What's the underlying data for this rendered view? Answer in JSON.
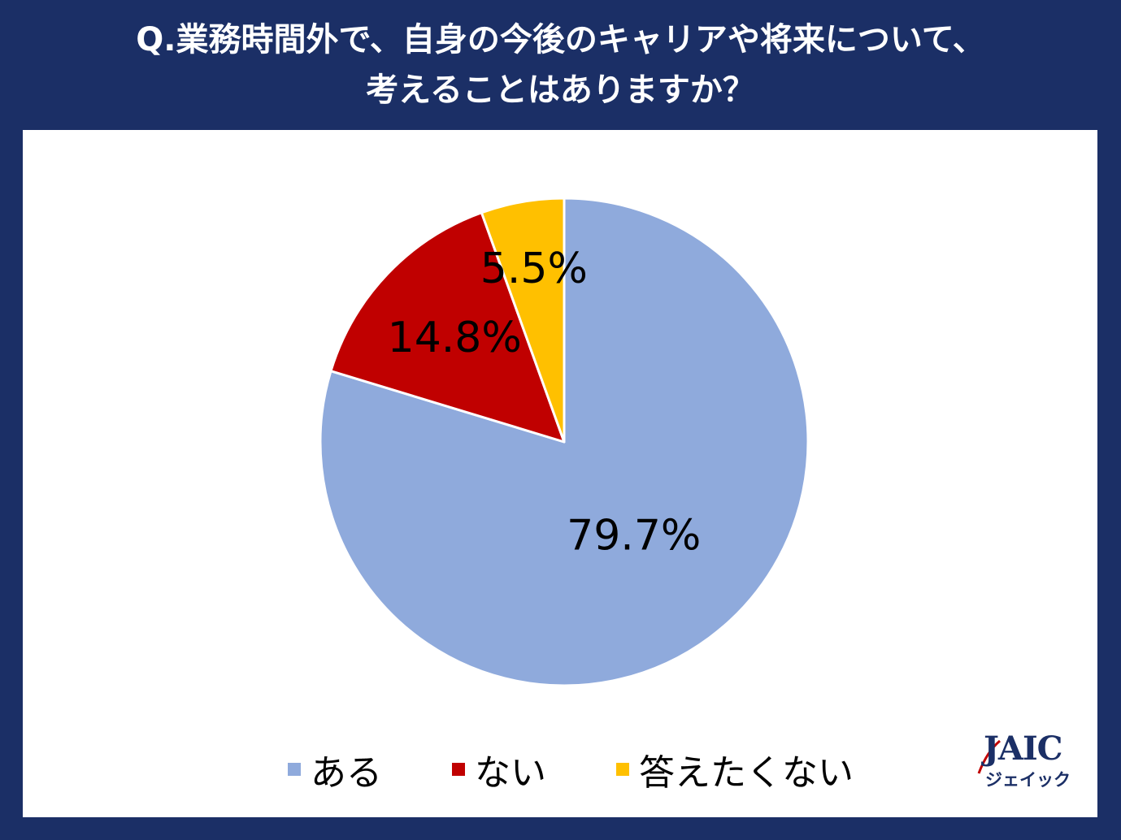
{
  "title": {
    "line1": "Q.業務時間外で、自身の今後のキャリアや将来について、",
    "line2": "考えることはありますか？"
  },
  "chart_data": {
    "type": "pie",
    "categories": [
      "ある",
      "ない",
      "答えたくない"
    ],
    "values": [
      79.7,
      14.8,
      5.5
    ],
    "data_labels": [
      "79.7%",
      "14.8%",
      "5.5%"
    ],
    "colors": [
      "#8faadc",
      "#c00000",
      "#ffc000"
    ],
    "start": "12 o'clock",
    "direction": "clockwise",
    "legend_position": "bottom"
  },
  "logo": {
    "main": "JAIC",
    "sub": "ジェイック",
    "accent": "#c00000"
  }
}
